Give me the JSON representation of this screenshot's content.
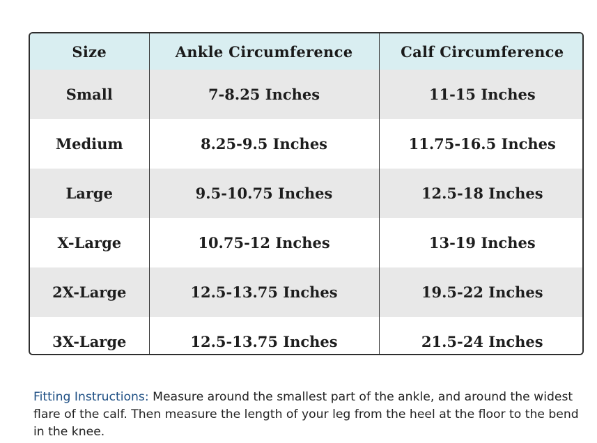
{
  "table": {
    "headers": [
      "Size",
      "Ankle Circumference",
      "Calf Circumference"
    ],
    "rows": [
      [
        "Small",
        "7-8.25 Inches",
        "11-15 Inches"
      ],
      [
        "Medium",
        "8.25-9.5 Inches",
        "11.75-16.5 Inches"
      ],
      [
        "Large",
        "9.5-10.75 Inches",
        "12.5-18 Inches"
      ],
      [
        "X-Large",
        "10.75-12 Inches",
        "13-19 Inches"
      ],
      [
        "2X-Large",
        "12.5-13.75 Inches",
        "19.5-22 Inches"
      ],
      [
        "3X-Large",
        "12.5-13.75 Inches",
        "21.5-24 Inches"
      ]
    ]
  },
  "instructions": {
    "lead": "Fitting Instructions:",
    "text": " Measure around the smallest part of the ankle, and around the widest flare of the calf. Then measure the length of your leg from the heel at the floor to the bend in the knee."
  },
  "colors": {
    "header_bg": "#d9eef1",
    "stripe_bg": "#e8e8e8",
    "lead_text": "#1e4f84"
  }
}
